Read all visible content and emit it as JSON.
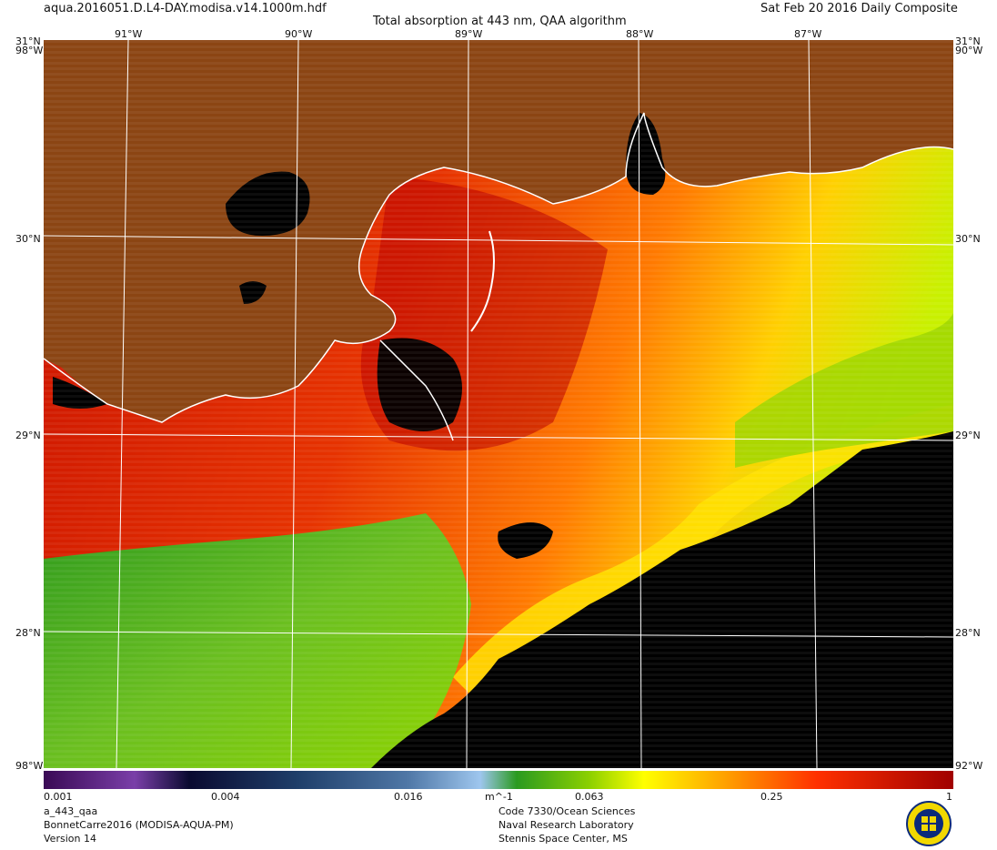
{
  "header": {
    "filename": "aqua.2016051.D.L4-DAY.modisa.v14.1000m.hdf",
    "date_label": "Sat Feb 20 2016 Daily Composite",
    "product_title": "Total absorption at 443 nm, QAA algorithm"
  },
  "map": {
    "top_lon_labels": [
      "91°W",
      "90°W",
      "89°W",
      "88°W",
      "87°W"
    ],
    "left_lat_labels": [
      "31°N",
      "30°N",
      "29°N",
      "28°N"
    ],
    "right_lat_labels": [
      "31°N",
      "30°N",
      "29°N",
      "28°N"
    ],
    "corner_labels": {
      "top_left": "31°N",
      "top_right": "31°N",
      "tl_overlap": "98°W",
      "tr_overlap": "90°W",
      "bl_overlap": "98°W",
      "br_overlap": "92°W"
    },
    "land_color": "#8b4513",
    "nodata_color": "#000000",
    "coast_color": "#ffffff"
  },
  "colorbar": {
    "tick_labels": [
      "0.001",
      "0.004",
      "0.016",
      "m^-1",
      "0.063",
      "0.25",
      "1"
    ],
    "scale": "log"
  },
  "footer_left": {
    "line1": "a_443_qaa",
    "line2": "BonnetCarre2016 (MODISA-AQUA-PM)",
    "line3": "Version 14"
  },
  "footer_right": {
    "line1": "Code 7330/Ocean Sciences",
    "line2": "Naval Research Laboratory",
    "line3": "Stennis Space Center, MS"
  }
}
